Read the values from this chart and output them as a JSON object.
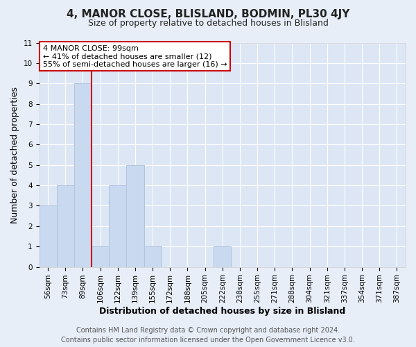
{
  "title": "4, MANOR CLOSE, BLISLAND, BODMIN, PL30 4JY",
  "subtitle": "Size of property relative to detached houses in Blisland",
  "xlabel": "Distribution of detached houses by size in Blisland",
  "ylabel": "Number of detached properties",
  "bar_labels": [
    "56sqm",
    "73sqm",
    "89sqm",
    "106sqm",
    "122sqm",
    "139sqm",
    "155sqm",
    "172sqm",
    "188sqm",
    "205sqm",
    "222sqm",
    "238sqm",
    "255sqm",
    "271sqm",
    "288sqm",
    "304sqm",
    "321sqm",
    "337sqm",
    "354sqm",
    "371sqm",
    "387sqm"
  ],
  "bar_values": [
    3,
    4,
    9,
    1,
    4,
    5,
    1,
    0,
    0,
    0,
    1,
    0,
    0,
    0,
    0,
    0,
    0,
    0,
    0,
    0,
    0
  ],
  "bar_color": "#c9d9ef",
  "bar_edge_color": "#b0c4de",
  "vline_bar_index": 2,
  "vline_color": "#cc0000",
  "ylim": [
    0,
    11
  ],
  "yticks": [
    0,
    1,
    2,
    3,
    4,
    5,
    6,
    7,
    8,
    9,
    10,
    11
  ],
  "ann_line1": "4 MANOR CLOSE: 99sqm",
  "ann_line2": "← 41% of detached houses are smaller (12)",
  "ann_line3": "55% of semi-detached houses are larger (16) →",
  "footer_line1": "Contains HM Land Registry data © Crown copyright and database right 2024.",
  "footer_line2": "Contains public sector information licensed under the Open Government Licence v3.0.",
  "background_color": "#e8eef8",
  "plot_bg_color": "#dde6f5",
  "grid_color": "#ffffff",
  "title_fontsize": 11,
  "subtitle_fontsize": 9,
  "axis_label_fontsize": 9,
  "tick_fontsize": 7.5,
  "ann_fontsize": 8,
  "footer_fontsize": 7
}
